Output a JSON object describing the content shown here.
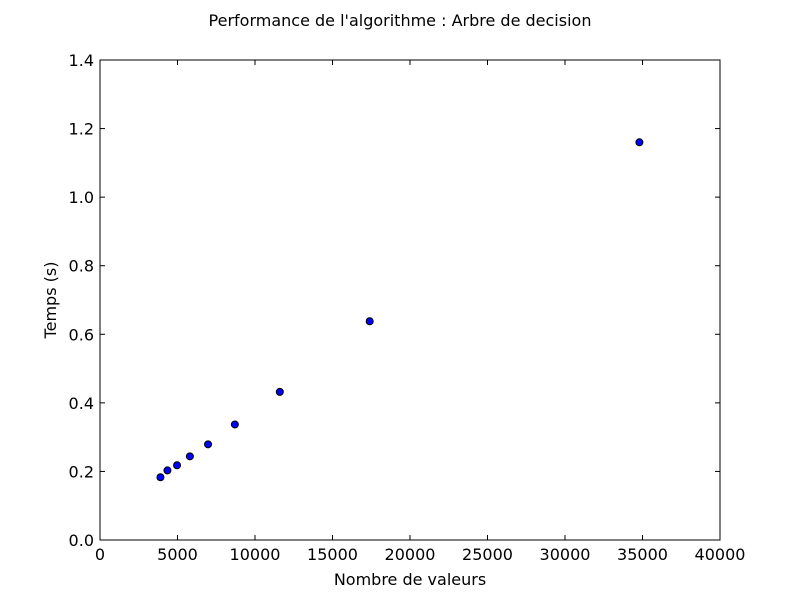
{
  "chart_data": {
    "type": "scatter",
    "title": "Performance de l'algorithme : Arbre de decision",
    "xlabel": "Nombre de valeurs",
    "ylabel": "Temps (s)",
    "xlim": [
      0,
      40000
    ],
    "ylim": [
      0.0,
      1.4
    ],
    "x_ticks": [
      0,
      5000,
      10000,
      15000,
      20000,
      25000,
      30000,
      35000,
      40000
    ],
    "x_tick_labels": [
      "0",
      "5000",
      "10000",
      "15000",
      "20000",
      "25000",
      "30000",
      "35000",
      "40000"
    ],
    "y_ticks": [
      0.0,
      0.2,
      0.4,
      0.6,
      0.8,
      1.0,
      1.2,
      1.4
    ],
    "y_tick_labels": [
      "0.0",
      "0.2",
      "0.4",
      "0.6",
      "0.8",
      "1.0",
      "1.2",
      "1.4"
    ],
    "grid": false,
    "marker_color": "#0000ff",
    "series": [
      {
        "x": [
          3900,
          4350,
          4970,
          5800,
          6970,
          8700,
          11600,
          17400,
          34800
        ],
        "y": [
          0.183,
          0.203,
          0.218,
          0.244,
          0.279,
          0.337,
          0.432,
          0.638,
          1.16
        ]
      }
    ]
  }
}
